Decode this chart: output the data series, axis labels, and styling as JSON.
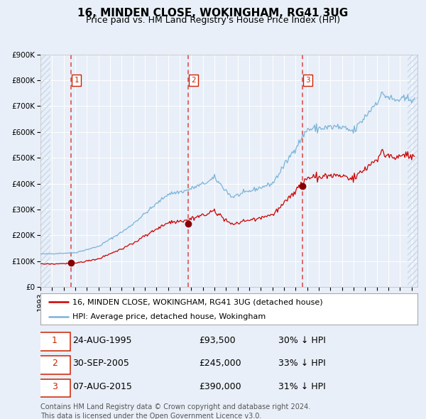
{
  "title": "16, MINDEN CLOSE, WOKINGHAM, RG41 3UG",
  "subtitle": "Price paid vs. HM Land Registry's House Price Index (HPI)",
  "ylim": [
    0,
    900000
  ],
  "yticks": [
    0,
    100000,
    200000,
    300000,
    400000,
    500000,
    600000,
    700000,
    800000,
    900000
  ],
  "ytick_labels": [
    "£0",
    "£100K",
    "£200K",
    "£300K",
    "£400K",
    "£500K",
    "£600K",
    "£700K",
    "£800K",
    "£900K"
  ],
  "xlim_start": 1993.0,
  "xlim_end": 2025.5,
  "background_color": "#e8eff8",
  "plot_bg_color": "#e8eff8",
  "grid_color": "#ffffff",
  "red_line_color": "#cc0000",
  "blue_line_color": "#7bb3d9",
  "dashed_line_color": "#dd4444",
  "sale_marker_color": "#880000",
  "sale1_x": 1995.646,
  "sale1_y": 93500,
  "sale2_x": 2005.747,
  "sale2_y": 245000,
  "sale3_x": 2015.597,
  "sale3_y": 390000,
  "sale1_label": "24-AUG-1995",
  "sale1_price": "£93,500",
  "sale1_hpi": "30% ↓ HPI",
  "sale2_label": "30-SEP-2005",
  "sale2_price": "£245,000",
  "sale2_hpi": "33% ↓ HPI",
  "sale3_label": "07-AUG-2015",
  "sale3_price": "£390,000",
  "sale3_hpi": "31% ↓ HPI",
  "legend_line1": "16, MINDEN CLOSE, WOKINGHAM, RG41 3UG (detached house)",
  "legend_line2": "HPI: Average price, detached house, Wokingham",
  "footer": "Contains HM Land Registry data © Crown copyright and database right 2024.\nThis data is licensed under the Open Government Licence v3.0.",
  "title_fontsize": 11,
  "subtitle_fontsize": 9,
  "tick_fontsize": 7.5,
  "legend_fontsize": 8,
  "footer_fontsize": 7
}
